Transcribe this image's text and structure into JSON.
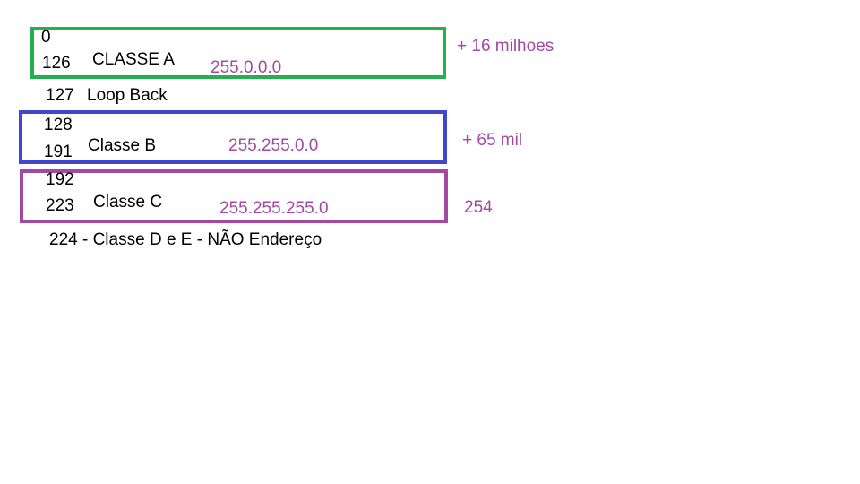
{
  "colors": {
    "class_a_border": "#22b14c",
    "class_b_border": "#3f48cc",
    "class_c_border": "#a349a4",
    "annotation_text": "#a349a4"
  },
  "class_a": {
    "range_start": "0",
    "range_end": "126",
    "label": "CLASSE A",
    "mask": "255.0.0.0",
    "hosts": "+ 16 milhoes"
  },
  "loopback": {
    "number": "127",
    "label": "Loop Back"
  },
  "class_b": {
    "range_start": "128",
    "range_end": "191",
    "label": "Classe B",
    "mask": "255.255.0.0",
    "hosts": "+ 65 mil"
  },
  "class_c": {
    "range_start": "192",
    "range_end": "223",
    "label": "Classe C",
    "mask": "255.255.255.0",
    "hosts": "254"
  },
  "footer_line": "224 - Classe D e E - NÃO Endereço"
}
